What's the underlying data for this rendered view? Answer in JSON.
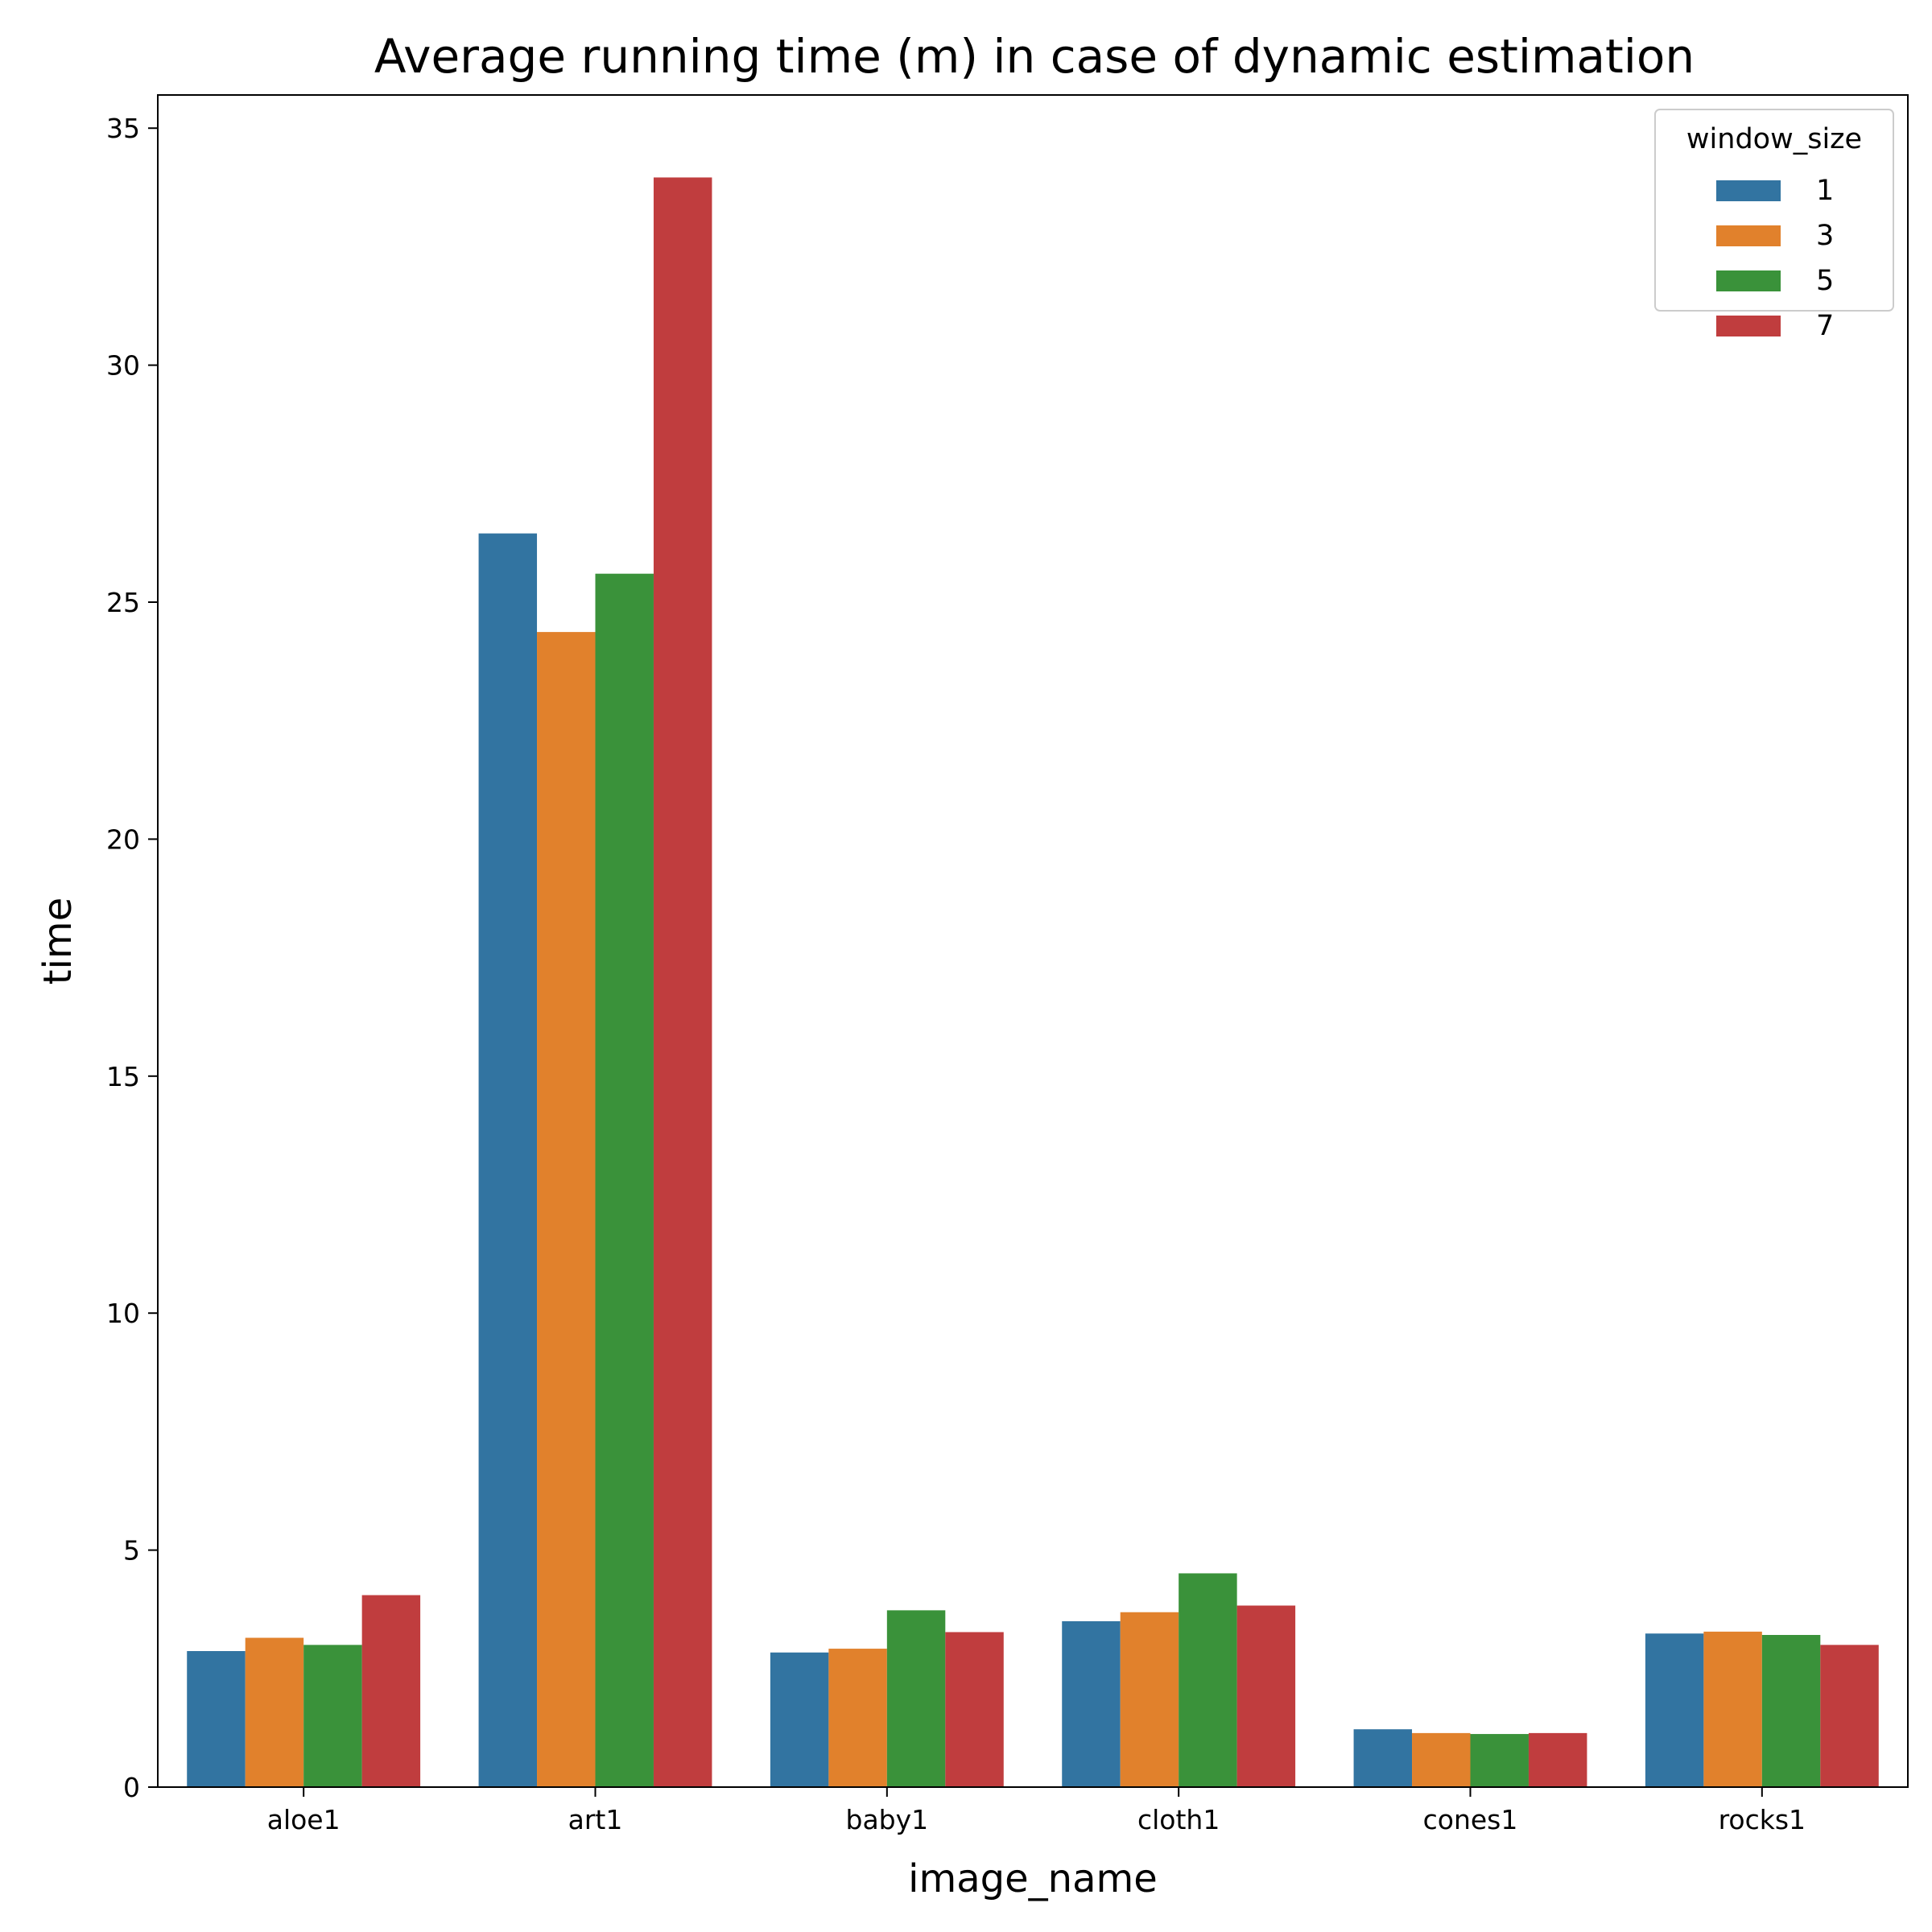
{
  "chart_data": {
    "type": "bar",
    "title": "Average running time (m) in case of dynamic estimation",
    "xlabel": "image_name",
    "ylabel": "time",
    "categories": [
      "aloe1",
      "art1",
      "baby1",
      "cloth1",
      "cones1",
      "rocks1"
    ],
    "ylim": [
      0,
      35.7
    ],
    "yticks": [
      0,
      5,
      10,
      15,
      20,
      25,
      30,
      35
    ],
    "grid": false,
    "legend": {
      "title": "window_size",
      "placement": "top-right"
    },
    "series": [
      {
        "name": "1",
        "color": "#3274a1",
        "values": [
          2.87,
          26.45,
          2.84,
          3.5,
          1.22,
          3.24
        ]
      },
      {
        "name": "3",
        "color": "#e1812c",
        "values": [
          3.15,
          24.37,
          2.92,
          3.69,
          1.14,
          3.28
        ]
      },
      {
        "name": "5",
        "color": "#3a923a",
        "values": [
          3.0,
          25.6,
          3.73,
          4.51,
          1.12,
          3.21
        ]
      },
      {
        "name": "7",
        "color": "#c03d3e",
        "values": [
          4.05,
          33.96,
          3.27,
          3.83,
          1.14,
          3.0
        ]
      }
    ]
  }
}
